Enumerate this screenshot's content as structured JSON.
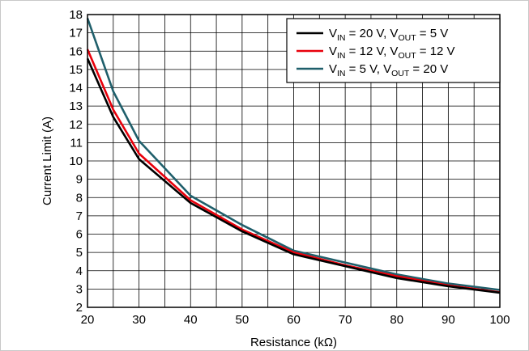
{
  "chart_data": {
    "type": "line",
    "title": "",
    "xlabel": "Resistance (kΩ)",
    "ylabel": "Current Limit (A)",
    "xlim": [
      20,
      100
    ],
    "ylim": [
      2,
      18
    ],
    "x_ticks": [
      20,
      30,
      40,
      50,
      60,
      70,
      80,
      90,
      100
    ],
    "y_ticks": [
      2,
      3,
      4,
      5,
      6,
      7,
      8,
      9,
      10,
      11,
      12,
      13,
      14,
      15,
      16,
      17,
      18
    ],
    "x_minor_step": 5,
    "grid": true,
    "legend_position": "top-right",
    "series": [
      {
        "name": "V_IN = 20 V, V_OUT = 5 V",
        "legend": {
          "v1": "V",
          "s1": "IN",
          "m1": " = 20 V, V",
          "s2": "OUT",
          "m2": " = 5 V"
        },
        "color": "#000000",
        "x": [
          20,
          25,
          30,
          40,
          50,
          60,
          70,
          80,
          90,
          100
        ],
        "y": [
          15.6,
          12.4,
          10.1,
          7.7,
          6.15,
          4.9,
          4.25,
          3.6,
          3.15,
          2.8
        ]
      },
      {
        "name": "V_IN = 12 V, V_OUT = 12 V",
        "legend": {
          "v1": "V",
          "s1": "IN",
          "m1": " = 12 V, V",
          "s2": "OUT",
          "m2": " = 12 V"
        },
        "color": "#e8000b",
        "x": [
          20,
          25,
          30,
          40,
          50,
          60,
          70,
          80,
          90,
          100
        ],
        "y": [
          16.1,
          12.8,
          10.4,
          7.85,
          6.25,
          5.0,
          4.3,
          3.7,
          3.2,
          2.82
        ]
      },
      {
        "name": "V_IN = 5 V, V_OUT = 20 V",
        "legend": {
          "v1": "V",
          "s1": "IN",
          "m1": " = 5 V, V",
          "s2": "OUT",
          "m2": " = 20 V"
        },
        "color": "#1f5f6b",
        "x": [
          20,
          25,
          30,
          40,
          50,
          60,
          70,
          80,
          90,
          100
        ],
        "y": [
          17.8,
          13.8,
          11.1,
          8.1,
          6.5,
          5.1,
          4.45,
          3.8,
          3.3,
          2.95
        ]
      }
    ]
  }
}
